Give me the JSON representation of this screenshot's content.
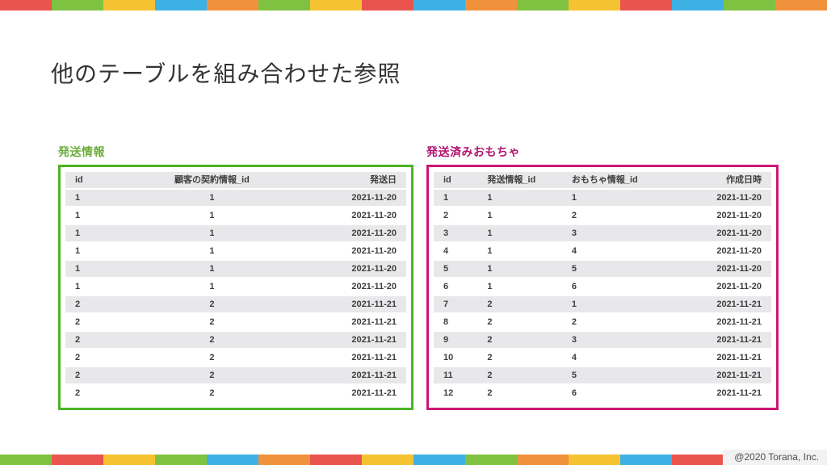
{
  "slide": {
    "title": "他のテーブルを組み合わせた参照",
    "footer": "@2020 Torana, Inc."
  },
  "stripes": {
    "top": [
      "#e9544e",
      "#7fc241",
      "#f5c332",
      "#3eb1e4",
      "#f0913b",
      "#7fc241",
      "#f5c332",
      "#e9544e",
      "#3eb1e4",
      "#f0913b",
      "#7fc241",
      "#f5c332",
      "#e9544e",
      "#3eb1e4",
      "#7fc241",
      "#f0913b"
    ],
    "bottom": [
      "#7fc241",
      "#e9544e",
      "#f5c332",
      "#7fc241",
      "#3eb1e4",
      "#f0913b",
      "#e9544e",
      "#f5c332",
      "#3eb1e4",
      "#7fc241",
      "#f0913b",
      "#f5c332",
      "#3eb1e4",
      "#e9544e",
      "#f0913b",
      "#7fc241"
    ]
  },
  "tables": [
    {
      "label": "発送情報",
      "label_color": "#6fae3d",
      "border_color": "#4cb422",
      "headers": [
        "id",
        "顧客の契約情報_id",
        "発送日"
      ],
      "aligns": [
        "left",
        "center",
        "right"
      ],
      "col_widths": [
        "16%",
        "54%",
        "30%"
      ],
      "rows": [
        [
          "1",
          "1",
          "2021-11-20"
        ],
        [
          "1",
          "1",
          "2021-11-20"
        ],
        [
          "1",
          "1",
          "2021-11-20"
        ],
        [
          "1",
          "1",
          "2021-11-20"
        ],
        [
          "1",
          "1",
          "2021-11-20"
        ],
        [
          "1",
          "1",
          "2021-11-20"
        ],
        [
          "2",
          "2",
          "2021-11-21"
        ],
        [
          "2",
          "2",
          "2021-11-21"
        ],
        [
          "2",
          "2",
          "2021-11-21"
        ],
        [
          "2",
          "2",
          "2021-11-21"
        ],
        [
          "2",
          "2",
          "2021-11-21"
        ],
        [
          "2",
          "2",
          "2021-11-21"
        ]
      ]
    },
    {
      "label": "発送済みおもちゃ",
      "label_color": "#b0136f",
      "border_color": "#cc1677",
      "headers": [
        "id",
        "発送情報_id",
        "おもちゃ情報_id",
        "作成日時"
      ],
      "aligns": [
        "left",
        "left",
        "left",
        "right"
      ],
      "col_widths": [
        "13%",
        "25%",
        "32%",
        "30%"
      ],
      "rows": [
        [
          "1",
          "1",
          "1",
          "2021-11-20"
        ],
        [
          "2",
          "1",
          "2",
          "2021-11-20"
        ],
        [
          "3",
          "1",
          "3",
          "2021-11-20"
        ],
        [
          "4",
          "1",
          "4",
          "2021-11-20"
        ],
        [
          "5",
          "1",
          "5",
          "2021-11-20"
        ],
        [
          "6",
          "1",
          "6",
          "2021-11-20"
        ],
        [
          "7",
          "2",
          "1",
          "2021-11-21"
        ],
        [
          "8",
          "2",
          "2",
          "2021-11-21"
        ],
        [
          "9",
          "2",
          "3",
          "2021-11-21"
        ],
        [
          "10",
          "2",
          "4",
          "2021-11-21"
        ],
        [
          "11",
          "2",
          "5",
          "2021-11-21"
        ],
        [
          "12",
          "2",
          "6",
          "2021-11-21"
        ]
      ]
    }
  ]
}
